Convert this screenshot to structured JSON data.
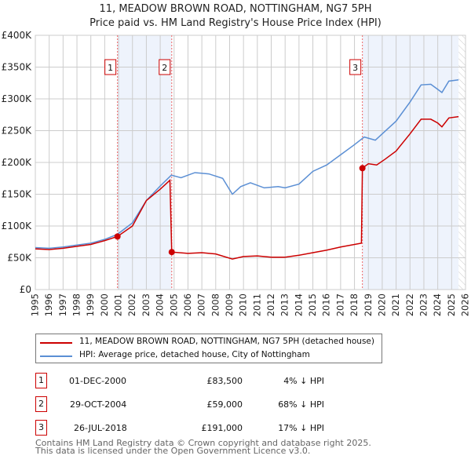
{
  "title": "11, MEADOW BROWN ROAD, NOTTINGHAM, NG7 5PH",
  "subtitle": "Price paid vs. HM Land Registry's House Price Index (HPI)",
  "chart_data": {
    "type": "line",
    "title": "11, MEADOW BROWN ROAD, NOTTINGHAM, NG7 5PH",
    "subtitle": "Price paid vs. HM Land Registry's House Price Index (HPI)",
    "xlim": [
      1995,
      2026
    ],
    "ylim": [
      0,
      400000
    ],
    "x_ticks": [
      "1995",
      "1996",
      "1997",
      "1998",
      "1999",
      "2000",
      "2001",
      "2002",
      "2003",
      "2004",
      "2005",
      "2006",
      "2007",
      "2008",
      "2009",
      "2010",
      "2011",
      "2012",
      "2013",
      "2014",
      "2015",
      "2016",
      "2017",
      "2018",
      "2019",
      "2020",
      "2021",
      "2022",
      "2023",
      "2024",
      "2025",
      "2026"
    ],
    "y_ticks": [
      {
        "v": 0,
        "l": "£0"
      },
      {
        "v": 50000,
        "l": "£50K"
      },
      {
        "v": 100000,
        "l": "£100K"
      },
      {
        "v": 150000,
        "l": "£150K"
      },
      {
        "v": 200000,
        "l": "£200K"
      },
      {
        "v": 250000,
        "l": "£250K"
      },
      {
        "v": 300000,
        "l": "£300K"
      },
      {
        "v": 350000,
        "l": "£350K"
      },
      {
        "v": 400000,
        "l": "£400K"
      }
    ],
    "grid": true,
    "series": [
      {
        "name": "11, MEADOW BROWN ROAD, NOTTINGHAM, NG7 5PH (detached house)",
        "color": "#cc0000",
        "x": [
          1995,
          1996,
          1997,
          1998,
          1999,
          2000,
          2000.92,
          2002,
          2003,
          2004,
          2004.7,
          2004.83,
          2006,
          2007,
          2008,
          2009.2,
          2010,
          2011,
          2012,
          2013,
          2014,
          2015,
          2016,
          2017,
          2018.5,
          2018.57,
          2019,
          2019.6,
          2020.2,
          2021,
          2022,
          2022.8,
          2023.5,
          2024,
          2024.3,
          2024.8,
          2025.5
        ],
        "y": [
          64000,
          63000,
          65000,
          68000,
          71000,
          77000,
          83500,
          100000,
          140000,
          158000,
          172000,
          59000,
          57000,
          58000,
          56000,
          48000,
          52000,
          53000,
          51000,
          51000,
          54000,
          58000,
          62000,
          67000,
          73000,
          191000,
          198000,
          196000,
          205000,
          218000,
          245000,
          268000,
          268000,
          262000,
          256000,
          270000,
          272000
        ]
      },
      {
        "name": "HPI: Average price, detached house, City of Nottingham",
        "color": "#5b8fd4",
        "x": [
          1995,
          1996,
          1997,
          1998,
          1999,
          2000,
          2000.92,
          2002,
          2003,
          2004,
          2004.8,
          2005.5,
          2006.5,
          2007.5,
          2008.5,
          2009.2,
          2009.8,
          2010.5,
          2011.5,
          2012.5,
          2013,
          2014,
          2015,
          2016,
          2017,
          2018,
          2018.7,
          2019.5,
          2020,
          2021,
          2022,
          2022.8,
          2023.5,
          2024,
          2024.3,
          2024.8,
          2025.5
        ],
        "y": [
          66000,
          65000,
          67000,
          70000,
          73000,
          79000,
          87000,
          105000,
          140000,
          163000,
          180000,
          176000,
          184000,
          182000,
          175000,
          150000,
          162000,
          168000,
          160000,
          162000,
          160000,
          166000,
          186000,
          196000,
          212000,
          228000,
          240000,
          235000,
          245000,
          265000,
          295000,
          322000,
          323000,
          315000,
          310000,
          328000,
          330000
        ]
      }
    ],
    "transactions": [
      {
        "n": "1",
        "x": 2000.92,
        "y": 83500
      },
      {
        "n": "2",
        "x": 2004.83,
        "y": 59000
      },
      {
        "n": "3",
        "x": 2018.57,
        "y": 191000
      }
    ],
    "shaded_ranges": [
      [
        2000.92,
        2004.83
      ],
      [
        2018.57,
        2025.5
      ]
    ],
    "forecast_hatch_from": 2025.5,
    "legend": "bottom"
  },
  "legend": {
    "items": [
      {
        "label": "11, MEADOW BROWN ROAD, NOTTINGHAM, NG7 5PH (detached house)",
        "color": "#cc0000"
      },
      {
        "label": "HPI: Average price, detached house, City of Nottingham",
        "color": "#5b8fd4"
      }
    ]
  },
  "transactions": [
    {
      "n": "1",
      "date": "01-DEC-2000",
      "price": "£83,500",
      "hpi": "4% ↓ HPI"
    },
    {
      "n": "2",
      "date": "29-OCT-2004",
      "price": "£59,000",
      "hpi": "68% ↓ HPI"
    },
    {
      "n": "3",
      "date": "26-JUL-2018",
      "price": "£191,000",
      "hpi": "17% ↓ HPI"
    }
  ],
  "footer": {
    "line1": "Contains HM Land Registry data © Crown copyright and database right 2025.",
    "line2": "This data is licensed under the Open Government Licence v3.0."
  }
}
